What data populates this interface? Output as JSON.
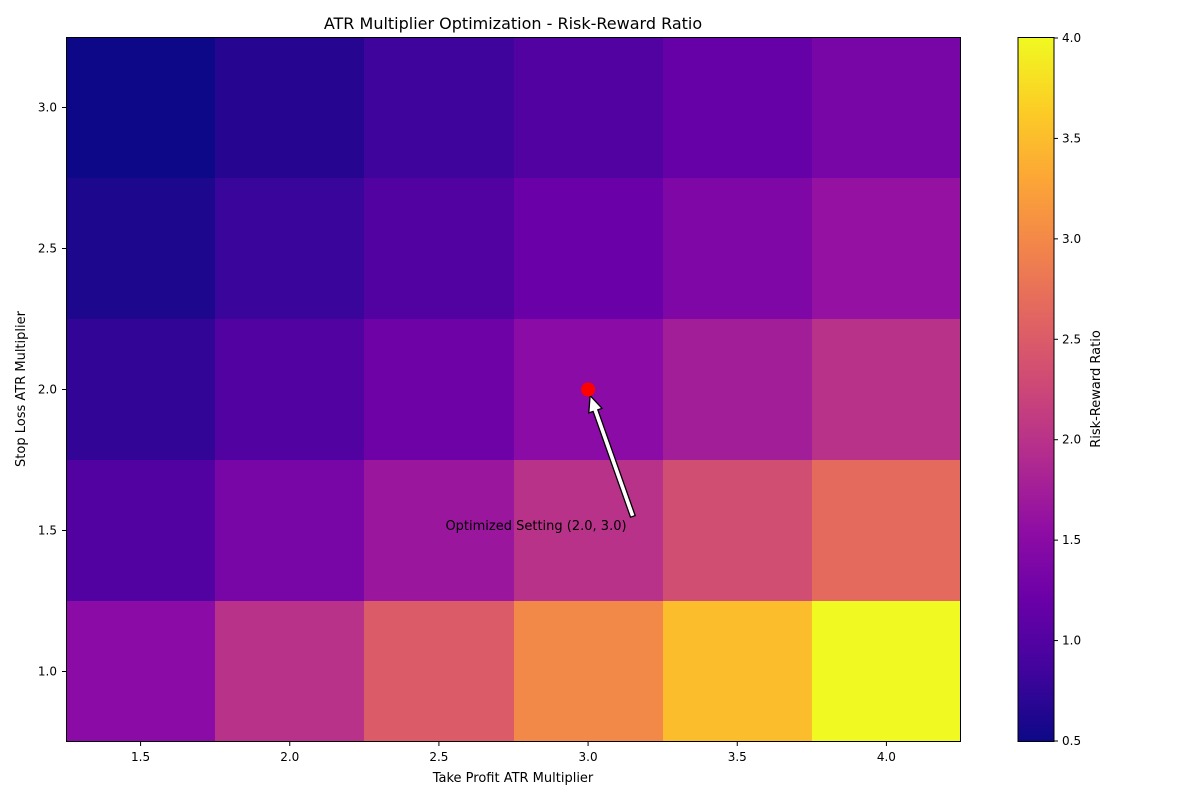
{
  "chart_data": {
    "type": "heatmap",
    "title": "ATR Multiplier Optimization - Risk-Reward Ratio",
    "xlabel": "Take Profit ATR Multiplier",
    "ylabel": "Stop Loss ATR Multiplier",
    "x": [
      1.5,
      2.0,
      2.5,
      3.0,
      3.5,
      4.0
    ],
    "y": [
      1.0,
      1.5,
      2.0,
      2.5,
      3.0
    ],
    "x_tick_labels": [
      "1.5",
      "2.0",
      "2.5",
      "3.0",
      "3.5",
      "4.0"
    ],
    "y_tick_labels": [
      "1.0",
      "1.5",
      "2.0",
      "2.5",
      "3.0"
    ],
    "values": [
      [
        1.5,
        2.0,
        2.5,
        3.0,
        3.5,
        4.0
      ],
      [
        1.0,
        1.3333,
        1.6667,
        2.0,
        2.3333,
        2.6667
      ],
      [
        0.75,
        1.0,
        1.25,
        1.5,
        1.75,
        2.0
      ],
      [
        0.6,
        0.8,
        1.0,
        1.2,
        1.4,
        1.6
      ],
      [
        0.5,
        0.6667,
        0.8333,
        1.0,
        1.1667,
        1.3333
      ]
    ],
    "colormap": "plasma",
    "colorbar": {
      "label": "Risk-Reward Ratio",
      "min": 0.5,
      "max": 4.0,
      "ticks": [
        0.5,
        1.0,
        1.5,
        2.0,
        2.5,
        3.0,
        3.5,
        4.0
      ],
      "tick_labels": [
        "0.5",
        "1.0",
        "1.5",
        "2.0",
        "2.5",
        "3.0",
        "3.5",
        "4.0"
      ]
    },
    "annotation": {
      "text": "Optimized Setting (2.0, 3.0)",
      "point": {
        "x": 3.0,
        "y": 2.0
      },
      "text_anchor_data": {
        "x": 3.15,
        "y": 1.55
      },
      "marker_color": "#ff0000",
      "arrow_color": "#ffffff"
    }
  }
}
